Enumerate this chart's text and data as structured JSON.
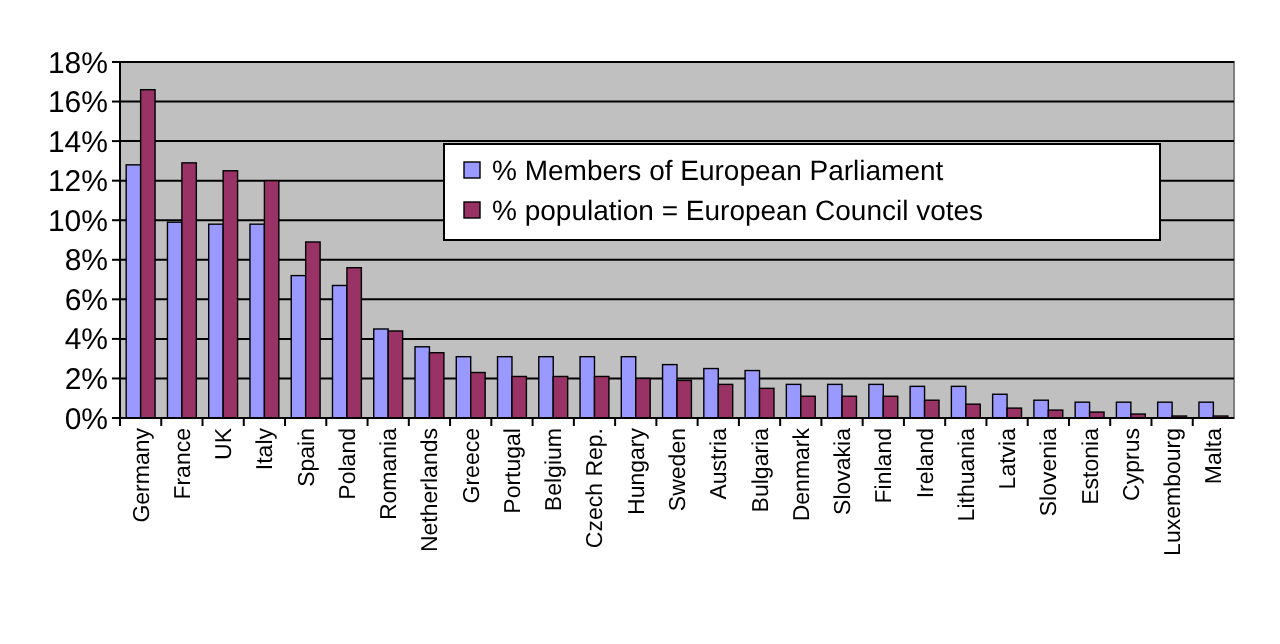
{
  "chart_data": {
    "type": "bar",
    "categories": [
      "Germany",
      "France",
      "UK",
      "Italy",
      "Spain",
      "Poland",
      "Romania",
      "Netherlands",
      "Greece",
      "Portugal",
      "Belgium",
      "Czech Rep.",
      "Hungary",
      "Sweden",
      "Austria",
      "Bulgaria",
      "Denmark",
      "Slovakia",
      "Finland",
      "Ireland",
      "Lithuania",
      "Latvia",
      "Slovenia",
      "Estonia",
      "Cyprus",
      "Luxembourg",
      "Malta"
    ],
    "series": [
      {
        "name": "% Members of European Parliament",
        "color": "#9999ff",
        "values": [
          12.8,
          9.9,
          9.8,
          9.8,
          7.2,
          6.7,
          4.5,
          3.6,
          3.1,
          3.1,
          3.1,
          3.1,
          3.1,
          2.7,
          2.5,
          2.4,
          1.7,
          1.7,
          1.7,
          1.6,
          1.6,
          1.2,
          0.9,
          0.8,
          0.8,
          0.8,
          0.8
        ]
      },
      {
        "name": "% population = European Council votes",
        "color": "#993366",
        "values": [
          16.6,
          12.9,
          12.5,
          12.0,
          8.9,
          7.6,
          4.4,
          3.3,
          2.3,
          2.1,
          2.1,
          2.1,
          2.0,
          1.9,
          1.7,
          1.5,
          1.1,
          1.1,
          1.1,
          0.9,
          0.7,
          0.5,
          0.4,
          0.3,
          0.2,
          0.1,
          0.1
        ]
      }
    ],
    "ylim": [
      0,
      18
    ],
    "yticks": [
      {
        "value": 0,
        "label": "0%"
      },
      {
        "value": 2,
        "label": "2%"
      },
      {
        "value": 4,
        "label": "4%"
      },
      {
        "value": 6,
        "label": "6%"
      },
      {
        "value": 8,
        "label": "8%"
      },
      {
        "value": 10,
        "label": "10%"
      },
      {
        "value": 12,
        "label": "12%"
      },
      {
        "value": 14,
        "label": "14%"
      },
      {
        "value": 16,
        "label": "16%"
      },
      {
        "value": 18,
        "label": "18%"
      }
    ],
    "grid": "y",
    "legend": "top right"
  }
}
